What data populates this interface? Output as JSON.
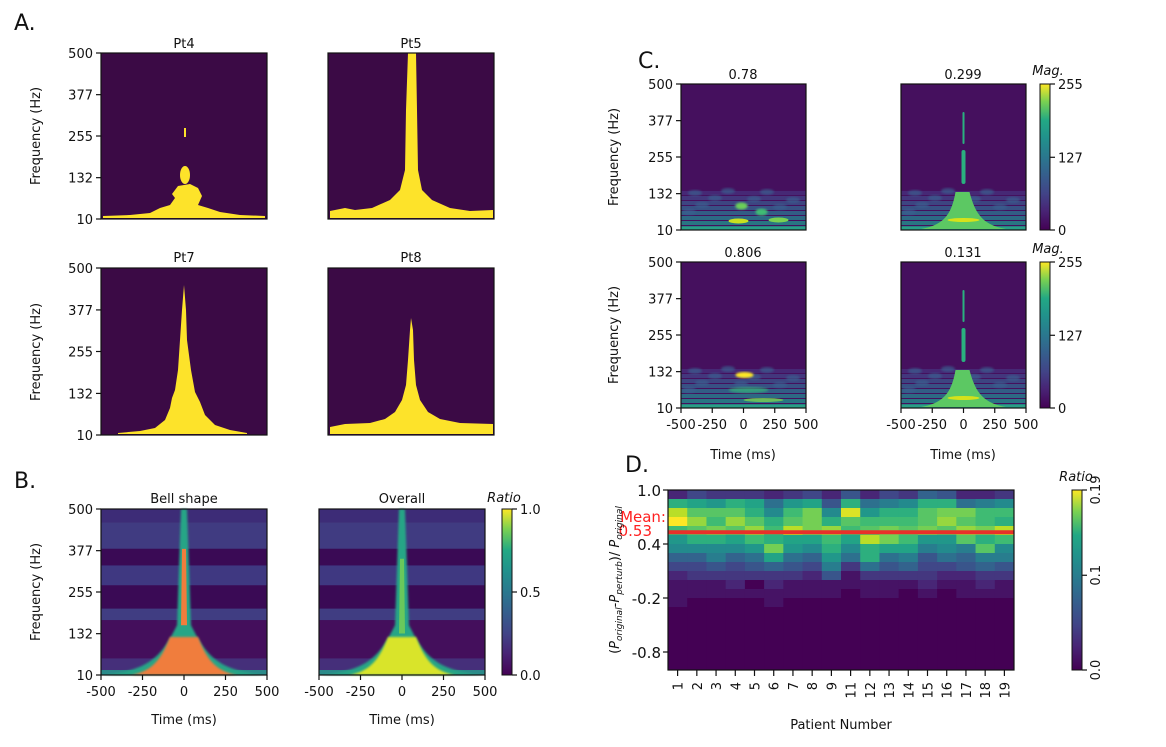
{
  "figure": {
    "panel_labels": [
      "A.",
      "B.",
      "C.",
      "D."
    ]
  },
  "colors": {
    "viridis_low": "#440154",
    "viridis_mid": "#21918c",
    "viridis_high": "#fde725",
    "mask_dark": "#3b0a45",
    "mask_yellow": "#fde32a",
    "bell_orange": "#f07d3c",
    "mean_line": "#e8302a",
    "mean_text": "#ff2020"
  },
  "chart_data": [
    {
      "id": "A",
      "type": "heatmap",
      "description": "Binary time-frequency masks per patient",
      "ylabel": "Frequency (Hz)",
      "yticks": [
        "10",
        "132",
        "255",
        "377",
        "500"
      ],
      "ylim": [
        10,
        500
      ],
      "xlim": [
        -500,
        500
      ],
      "subplots": [
        {
          "title": "Pt4",
          "peak_extent_hz": 280,
          "shape": "blobs"
        },
        {
          "title": "Pt5",
          "peak_extent_hz": 500,
          "shape": "spike"
        },
        {
          "title": "Pt7",
          "peak_extent_hz": 450,
          "shape": "spike"
        },
        {
          "title": "Pt8",
          "peak_extent_hz": 355,
          "shape": "spike"
        }
      ]
    },
    {
      "id": "B",
      "type": "heatmap",
      "ylabel": "Frequency (Hz)",
      "xlabel": "Time (ms)",
      "yticks": [
        "10",
        "132",
        "255",
        "377",
        "500"
      ],
      "xticks": [
        "-500",
        "-250",
        "0",
        "250",
        "500"
      ],
      "ylim": [
        10,
        500
      ],
      "xlim": [
        -500,
        500
      ],
      "subplots": [
        {
          "title": "Bell shape"
        },
        {
          "title": "Overall"
        }
      ],
      "colorbar": {
        "label": "Ratio",
        "ticks": [
          "0.0",
          "0.5",
          "1.0"
        ],
        "range": [
          0,
          1
        ]
      }
    },
    {
      "id": "C",
      "type": "heatmap",
      "ylabel": "Frequency (Hz)",
      "xlabel": "Time (ms)",
      "yticks": [
        "10",
        "132",
        "255",
        "377",
        "500"
      ],
      "xticks": [
        "-500",
        "-250",
        "0",
        "250",
        "500"
      ],
      "ylim": [
        10,
        500
      ],
      "xlim": [
        -500,
        500
      ],
      "subplots": [
        {
          "title": "0.78",
          "row": 0,
          "col": 0,
          "kind": "original"
        },
        {
          "title": "0.299",
          "row": 0,
          "col": 1,
          "kind": "perturbed"
        },
        {
          "title": "0.806",
          "row": 1,
          "col": 0,
          "kind": "original"
        },
        {
          "title": "0.131",
          "row": 1,
          "col": 1,
          "kind": "perturbed"
        }
      ],
      "colorbar": {
        "label": "Mag.",
        "ticks": [
          "0",
          "127",
          "255"
        ],
        "range": [
          0,
          255
        ]
      }
    },
    {
      "id": "D",
      "type": "heatmap",
      "xlabel": "Patient Number",
      "ylabel": "(P_original - P_perturb) / P_original",
      "ylabel_parts": {
        "open": "(",
        "p1": "P",
        "s1": "original",
        "dash": "-",
        "p2": "P",
        "s2": "perturb",
        "close": ")/ ",
        "p3": "P",
        "s3": "original"
      },
      "categories": [
        "1",
        "2",
        "3",
        "4",
        "5",
        "6",
        "7",
        "8",
        "9",
        "11",
        "12",
        "13",
        "14",
        "15",
        "16",
        "17",
        "18",
        "19"
      ],
      "yticks": [
        "1.0",
        "0.4",
        "-0.2",
        "-0.8"
      ],
      "ylim": [
        -1.0,
        1.0
      ],
      "bins": 20,
      "mean_line": {
        "value": 0.53,
        "label": "Mean:",
        "value_label": "0.53"
      },
      "colorbar": {
        "label": "Ratio",
        "ticks": [
          "0.0",
          "0.1",
          "0.19"
        ],
        "range": [
          0,
          0.19
        ]
      },
      "top_rows_values": [
        [
          0.02,
          0.04,
          0.03,
          0.03,
          0.03,
          0.02,
          0.03,
          0.04,
          0.02,
          0.05,
          0.02,
          0.04,
          0.03,
          0.06,
          0.05,
          0.02,
          0.02,
          0.03
        ],
        [
          0.12,
          0.11,
          0.1,
          0.12,
          0.11,
          0.07,
          0.1,
          0.11,
          0.05,
          0.12,
          0.07,
          0.08,
          0.09,
          0.12,
          0.12,
          0.07,
          0.08,
          0.09
        ],
        [
          0.17,
          0.14,
          0.14,
          0.14,
          0.12,
          0.09,
          0.13,
          0.15,
          0.09,
          0.18,
          0.1,
          0.12,
          0.12,
          0.14,
          0.15,
          0.15,
          0.13,
          0.13
        ],
        [
          0.19,
          0.16,
          0.13,
          0.16,
          0.14,
          0.12,
          0.14,
          0.15,
          0.12,
          0.14,
          0.13,
          0.13,
          0.13,
          0.14,
          0.16,
          0.14,
          0.13,
          0.12
        ],
        [
          0.13,
          0.14,
          0.15,
          0.14,
          0.16,
          0.13,
          0.17,
          0.15,
          0.16,
          0.13,
          0.14,
          0.15,
          0.14,
          0.15,
          0.14,
          0.16,
          0.15,
          0.17
        ],
        [
          0.1,
          0.12,
          0.12,
          0.11,
          0.13,
          0.12,
          0.11,
          0.11,
          0.13,
          0.11,
          0.17,
          0.15,
          0.13,
          0.1,
          0.1,
          0.14,
          0.12,
          0.13
        ],
        [
          0.09,
          0.09,
          0.09,
          0.09,
          0.1,
          0.15,
          0.1,
          0.09,
          0.12,
          0.09,
          0.12,
          0.11,
          0.11,
          0.08,
          0.09,
          0.08,
          0.14,
          0.09
        ],
        [
          0.06,
          0.06,
          0.08,
          0.06,
          0.07,
          0.11,
          0.07,
          0.06,
          0.1,
          0.07,
          0.12,
          0.07,
          0.08,
          0.05,
          0.07,
          0.06,
          0.08,
          0.08
        ],
        [
          0.04,
          0.04,
          0.05,
          0.04,
          0.05,
          0.06,
          0.05,
          0.04,
          0.08,
          0.03,
          0.07,
          0.05,
          0.06,
          0.04,
          0.04,
          0.05,
          0.06,
          0.05
        ],
        [
          0.02,
          0.03,
          0.03,
          0.03,
          0.03,
          0.03,
          0.03,
          0.02,
          0.05,
          0.01,
          0.03,
          0.03,
          0.03,
          0.03,
          0.02,
          0.02,
          0.03,
          0.03
        ],
        [
          0.01,
          0.01,
          0.01,
          0.02,
          0.0,
          0.02,
          0.01,
          0.01,
          0.01,
          0.01,
          0.01,
          0.01,
          0.01,
          0.02,
          0.01,
          0.01,
          0.02,
          0.01
        ],
        [
          0.01,
          0.01,
          0.01,
          0.01,
          0.01,
          0.01,
          0.01,
          0.01,
          0.01,
          0.0,
          0.01,
          0.01,
          0.0,
          0.01,
          0.0,
          0.01,
          0.01,
          0.01
        ],
        [
          0.01,
          0.0,
          0.0,
          0.0,
          0.0,
          0.01,
          0.0,
          0.0,
          0.0,
          0.0,
          0.0,
          0.0,
          0.0,
          0.0,
          0.0,
          0.0,
          0.0,
          0.0
        ]
      ]
    }
  ]
}
